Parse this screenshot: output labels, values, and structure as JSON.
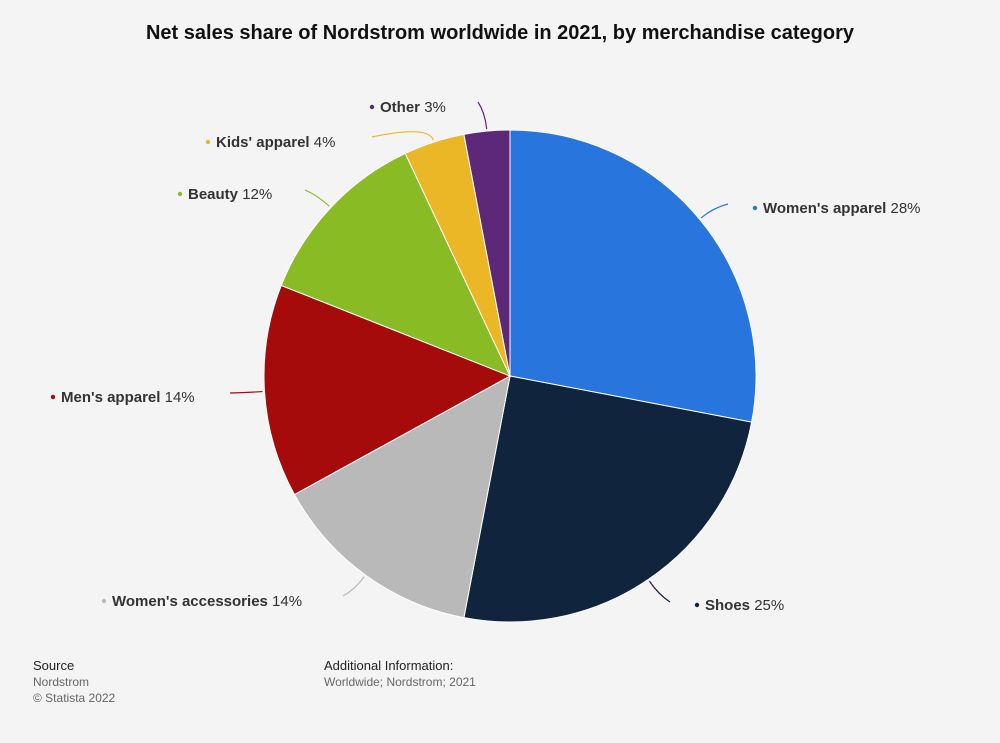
{
  "chart_data": {
    "type": "pie",
    "title": "Net sales share of Nordstrom worldwide in 2021, by merchandise category",
    "slices": [
      {
        "label": "Women's apparel",
        "value": 28,
        "value_label": "28%",
        "color": "#2876dd"
      },
      {
        "label": "Shoes",
        "value": 25,
        "value_label": "25%",
        "color": "#10243d"
      },
      {
        "label": "Women's accessories",
        "value": 14,
        "value_label": "14%",
        "color": "#b9b9b9"
      },
      {
        "label": "Men's apparel",
        "value": 14,
        "value_label": "14%",
        "color": "#a50b0b"
      },
      {
        "label": "Beauty",
        "value": 12,
        "value_label": "12%",
        "color": "#89bb24"
      },
      {
        "label": "Kids' apparel",
        "value": 4,
        "value_label": "4%",
        "color": "#ecb727"
      },
      {
        "label": "Other",
        "value": 3,
        "value_label": "3%",
        "color": "#5e2878"
      }
    ]
  },
  "footer": {
    "source_heading": "Source",
    "source_name": "Nordstrom",
    "copyright": "© Statista 2022",
    "additional_heading": "Additional Information:",
    "additional_text": "Worldwide; Nordstrom; 2021"
  }
}
